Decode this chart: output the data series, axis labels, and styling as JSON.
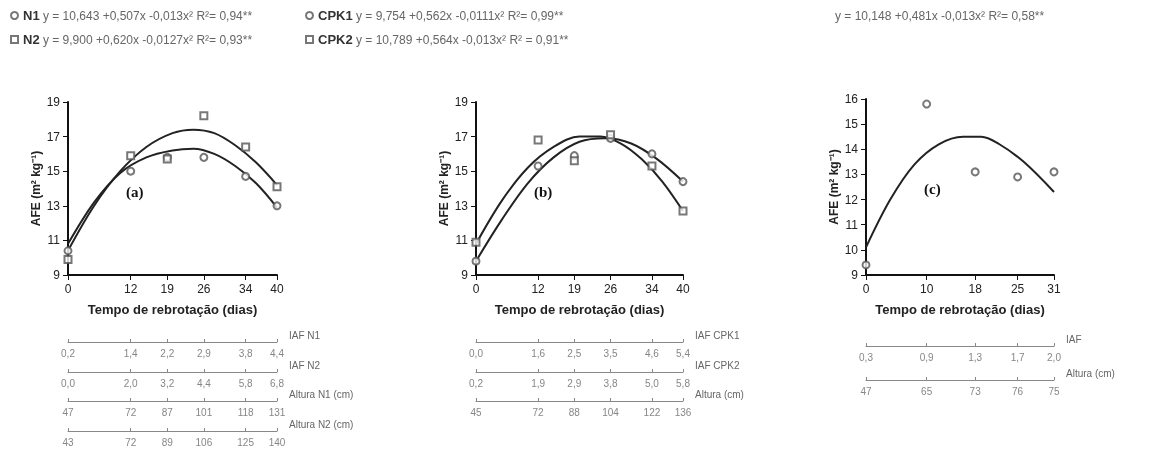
{
  "chart_data": [
    {
      "type": "scatter",
      "xlabel": "Tempo de rebrotação (dias)",
      "ylabel": "AFE (m² kg⁻¹)",
      "xlim": [
        0,
        40
      ],
      "xticks": [
        0,
        12,
        19,
        26,
        34,
        40
      ],
      "ylim": [
        9,
        19
      ],
      "yticks": [
        9,
        11,
        13,
        15,
        17,
        19
      ],
      "grid": false,
      "legend": "top left",
      "annotations": [
        "(a)",
        "y = 10,643 +0,507x -0,013x² R²= 0,94**",
        "y = 9,900 +0,620x -0,0127x² R²= 0,93**"
      ],
      "series": [
        {
          "name": "N1",
          "marker": "circle",
          "color": "#555555",
          "x": [
            0,
            12,
            19,
            26,
            34,
            40
          ],
          "values": [
            10.4,
            15.0,
            15.8,
            15.8,
            14.7,
            13.0
          ]
        },
        {
          "name": "N2",
          "marker": "square",
          "color": "#555555",
          "x": [
            0,
            12,
            19,
            26,
            34,
            40
          ],
          "values": [
            9.9,
            15.9,
            15.7,
            18.2,
            16.4,
            14.1
          ]
        },
        {
          "type": "line",
          "color": "#222222",
          "x": [
            0,
            5,
            10,
            15,
            20,
            24,
            28,
            32,
            36,
            40
          ],
          "values": [
            10.8,
            13.2,
            14.9,
            15.8,
            16.2,
            16.3,
            16.0,
            15.3,
            14.3,
            12.9
          ]
        },
        {
          "type": "line",
          "color": "#222222",
          "x": [
            0,
            5,
            10,
            15,
            20,
            24,
            28,
            32,
            36,
            40
          ],
          "values": [
            10.4,
            13.0,
            15.0,
            16.4,
            17.2,
            17.4,
            17.2,
            16.5,
            15.5,
            14.2
          ]
        }
      ]
    },
    {
      "type": "other",
      "annotations": [
        "IAF N1",
        "0,2",
        "1,4",
        "2,2",
        "2,9",
        "3,8",
        "4,4",
        "IAF N2",
        "0,0",
        "2,0",
        "3,2",
        "4,4",
        "5,8",
        "6,8",
        "Altura N1 (cm)",
        "47",
        "72",
        "87",
        "101",
        "118",
        "131",
        "Altura N2 (cm)",
        "43",
        "72",
        "89",
        "106",
        "125",
        "140"
      ]
    },
    {
      "type": "scatter",
      "xlabel": "Tempo de rebrotação (dias)",
      "ylabel": "AFE (m² kg⁻¹)",
      "xlim": [
        0,
        40
      ],
      "xticks": [
        0,
        12,
        19,
        26,
        34,
        40
      ],
      "ylim": [
        9,
        19
      ],
      "yticks": [
        9,
        11,
        13,
        15,
        17,
        19
      ],
      "grid": false,
      "legend": "top",
      "annotations": [
        "(b)",
        "y = 9,754 +0,562x -0,0111x² R²= 0,99**",
        "y = 10,789 +0,564x -0,013x² R² = 0,91**"
      ],
      "series": [
        {
          "name": "CPK1",
          "marker": "circle",
          "color": "#555555",
          "x": [
            0,
            12,
            19,
            26,
            34,
            40
          ],
          "values": [
            9.8,
            15.3,
            15.9,
            16.9,
            16.0,
            14.4
          ]
        },
        {
          "name": "CPK2",
          "marker": "square",
          "color": "#555555",
          "x": [
            0,
            12,
            19,
            26,
            34,
            40
          ],
          "values": [
            10.9,
            16.8,
            15.6,
            17.1,
            15.3,
            12.7
          ]
        },
        {
          "type": "line",
          "color": "#222222",
          "x": [
            0,
            5,
            10,
            15,
            20,
            25,
            30,
            35,
            40
          ],
          "values": [
            9.8,
            12.2,
            14.3,
            15.8,
            16.7,
            16.9,
            16.6,
            15.7,
            14.4
          ]
        },
        {
          "type": "line",
          "color": "#222222",
          "x": [
            0,
            5,
            10,
            15,
            20,
            24,
            28,
            32,
            36,
            40
          ],
          "values": [
            10.8,
            13.3,
            15.2,
            16.4,
            17.0,
            17.0,
            16.6,
            15.7,
            14.4,
            12.7
          ]
        }
      ]
    },
    {
      "type": "other",
      "annotations": [
        "IAF CPK1",
        "0,0",
        "1,6",
        "2,5",
        "3,5",
        "4,6",
        "5,4",
        "IAF CPK2",
        "0,2",
        "1,9",
        "2,9",
        "3,8",
        "5,0",
        "5,8",
        "Altura (cm)",
        "45",
        "72",
        "88",
        "104",
        "122",
        "136"
      ]
    },
    {
      "type": "scatter",
      "xlabel": "Tempo de rebrotação (dias)",
      "ylabel": "AFE (m² kg⁻¹)",
      "xlim": [
        0,
        31
      ],
      "xticks": [
        0,
        10,
        18,
        25,
        31
      ],
      "ylim": [
        9,
        16
      ],
      "yticks": [
        9,
        10,
        11,
        12,
        13,
        14,
        15,
        16
      ],
      "grid": false,
      "annotations": [
        "(c)",
        "y = 10,148 +0,481x -0,013x² R²= 0,58**"
      ],
      "series": [
        {
          "marker": "circle",
          "color": "#555555",
          "x": [
            0,
            10,
            18,
            25,
            31
          ],
          "values": [
            9.4,
            15.8,
            13.1,
            12.9,
            13.1
          ]
        },
        {
          "type": "line",
          "color": "#222222",
          "x": [
            0,
            4,
            8,
            12,
            16,
            19,
            22,
            26,
            31
          ],
          "values": [
            10.1,
            12.0,
            13.4,
            14.2,
            14.5,
            14.5,
            14.2,
            13.5,
            12.3
          ]
        }
      ]
    },
    {
      "type": "other",
      "annotations": [
        "IAF",
        "0,3",
        "0,9",
        "1,3",
        "1,7",
        "2,0",
        "Altura (cm)",
        "47",
        "65",
        "73",
        "76",
        "75"
      ]
    }
  ]
}
